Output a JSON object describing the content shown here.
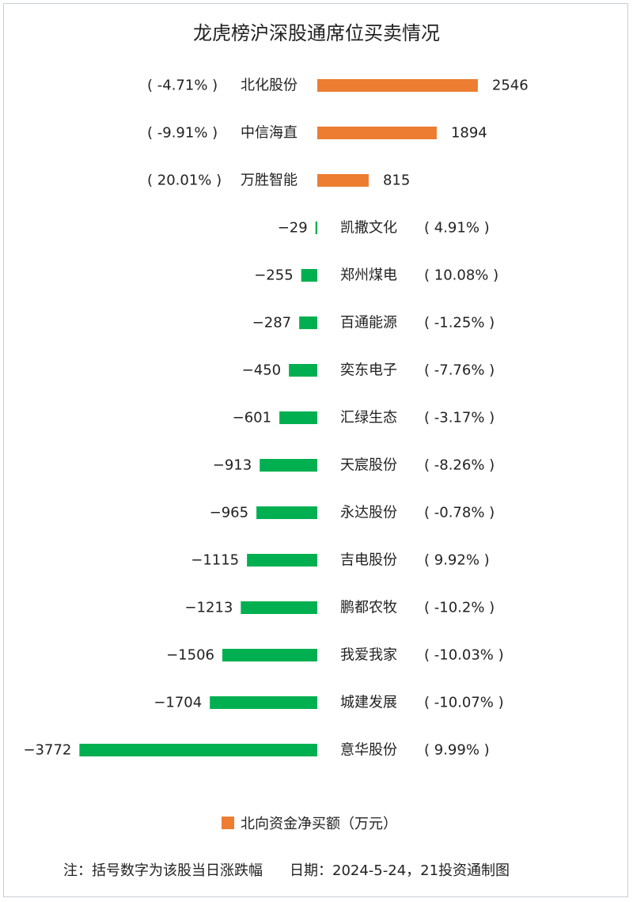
{
  "chart_data": {
    "type": "bar",
    "orientation": "horizontal",
    "title": "龙虎榜沪深股通席位买卖情况",
    "rows": [
      {
        "name": "北化股份",
        "value": 2546,
        "change": "( -4.71% )"
      },
      {
        "name": "中信海直",
        "value": 1894,
        "change": "( -9.91% )"
      },
      {
        "name": "万胜智能",
        "value": 815,
        "change": "( 20.01% )"
      },
      {
        "name": "凯撒文化",
        "value": -29,
        "change": "( 4.91% )"
      },
      {
        "name": "郑州煤电",
        "value": -255,
        "change": "( 10.08% )"
      },
      {
        "name": "百通能源",
        "value": -287,
        "change": "( -1.25% )"
      },
      {
        "name": "奕东电子",
        "value": -450,
        "change": "( -7.76% )"
      },
      {
        "name": "汇绿生态",
        "value": -601,
        "change": "( -3.17% )"
      },
      {
        "name": "天宸股份",
        "value": -913,
        "change": "( -8.26% )"
      },
      {
        "name": "永达股份",
        "value": -965,
        "change": "( -0.78% )"
      },
      {
        "name": "吉电股份",
        "value": -1115,
        "change": "( 9.92% )"
      },
      {
        "name": "鹏都农牧",
        "value": -1213,
        "change": "( -10.2% )"
      },
      {
        "name": "我爱我家",
        "value": -1506,
        "change": "( -10.03% )"
      },
      {
        "name": "城建发展",
        "value": -1704,
        "change": "( -10.07% )"
      },
      {
        "name": "意华股份",
        "value": -3772,
        "change": "( 9.99% )"
      }
    ],
    "legend": [
      "北向资金净买额（万元）"
    ],
    "legend_position": "bottom",
    "grid": false,
    "colors": {
      "positive": "#ed7d31",
      "negative": "#00b050"
    }
  },
  "footer": {
    "note": "注：括号数字为该股当日涨跌幅",
    "date_source": "日期：2024-5-24，21投资通制图"
  }
}
